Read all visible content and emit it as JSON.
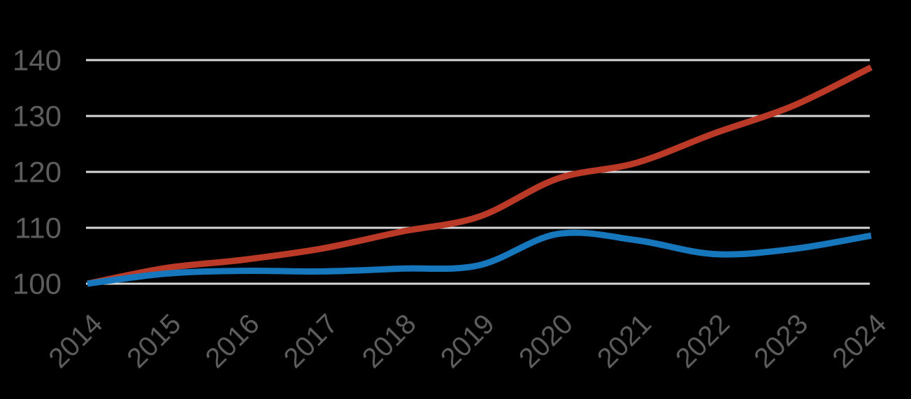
{
  "chart_data": {
    "type": "line",
    "title": "",
    "xlabel": "",
    "ylabel": "",
    "x": [
      2014,
      2015,
      2016,
      2017,
      2018,
      2019,
      2020,
      2021,
      2022,
      2023,
      2024
    ],
    "x_tick_labels": [
      "2014",
      "2015",
      "2016",
      "2017",
      "2018",
      "2019",
      "2020",
      "2021",
      "2022",
      "2023",
      "2024"
    ],
    "y_ticks": [
      100,
      110,
      120,
      130,
      140
    ],
    "y_tick_labels": [
      "100",
      "110",
      "120",
      "130",
      "140"
    ],
    "ylim": [
      100,
      140
    ],
    "grid": "horizontal-only",
    "legend": "none",
    "series": [
      {
        "name": "red-series",
        "color": "#bb3a27",
        "values": [
          100,
          102.8,
          104.3,
          106.3,
          109.3,
          112.0,
          118.8,
          121.6,
          126.9,
          131.8,
          138.7
        ]
      },
      {
        "name": "blue-series",
        "color": "#1777bd",
        "values": [
          100,
          101.8,
          102.3,
          102.2,
          102.7,
          103.3,
          108.9,
          107.8,
          105.3,
          106.2,
          108.6
        ]
      }
    ],
    "style": {
      "background_color": "#000000",
      "gridline_color": "#d8d8d8",
      "tick_label_color": "#5d5d5d",
      "x_tick_rotation_deg": -45
    }
  }
}
